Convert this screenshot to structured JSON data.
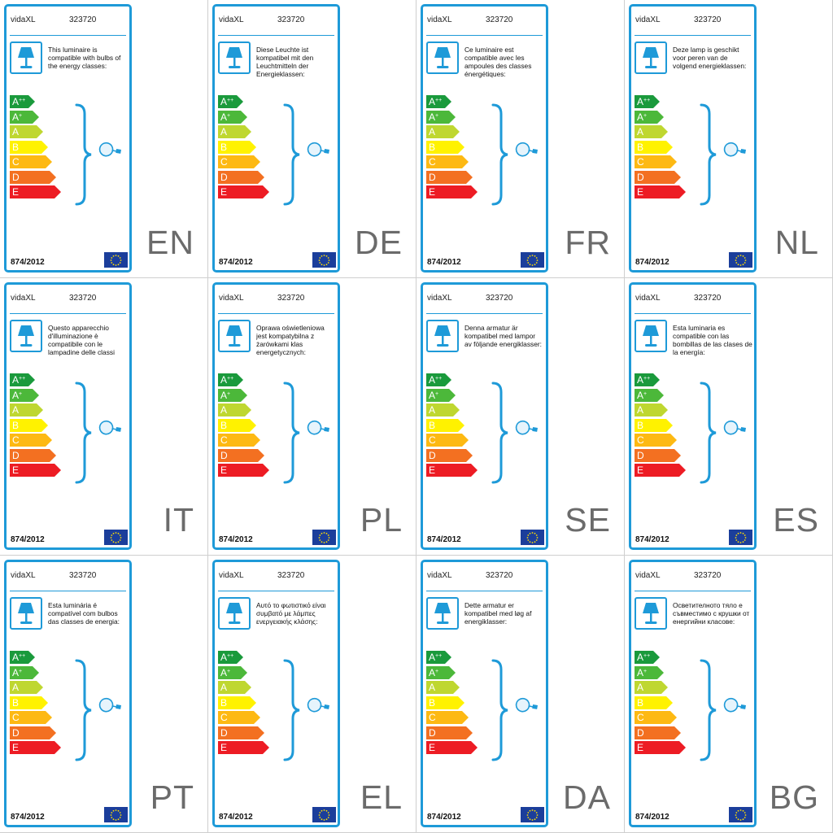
{
  "colors": {
    "accent": "#1e9ad8",
    "class_app": "#1a9a3c",
    "class_ap": "#4cb83a",
    "class_a": "#bfd730",
    "class_b": "#fff200",
    "class_c": "#fdb913",
    "class_d": "#f37021",
    "class_e": "#ed1c24"
  },
  "icons": [
    "lamp-icon",
    "brace-icon",
    "bulb-icon",
    "eu-flag-icon"
  ],
  "panels": [
    {
      "brand": "vidaXL",
      "code": "323720",
      "text": "This luminaire is compatible with bulbs of the energy classes:",
      "regulation": "874/2012",
      "lang": "EN",
      "classes": [
        {
          "letter": "A",
          "sup": "++"
        },
        {
          "letter": "A",
          "sup": "+"
        },
        {
          "letter": "A",
          "sup": ""
        },
        {
          "letter": "B",
          "sup": ""
        },
        {
          "letter": "C",
          "sup": ""
        },
        {
          "letter": "D",
          "sup": ""
        },
        {
          "letter": "E",
          "sup": ""
        }
      ]
    },
    {
      "brand": "vidaXL",
      "code": "323720",
      "text": "Diese Leuchte ist kompatibel mit den Leuchtmitteln der Energieklassen:",
      "regulation": "874/2012",
      "lang": "DE",
      "classes": [
        {
          "letter": "A",
          "sup": "++"
        },
        {
          "letter": "A",
          "sup": "+"
        },
        {
          "letter": "A",
          "sup": ""
        },
        {
          "letter": "B",
          "sup": ""
        },
        {
          "letter": "C",
          "sup": ""
        },
        {
          "letter": "D",
          "sup": ""
        },
        {
          "letter": "E",
          "sup": ""
        }
      ]
    },
    {
      "brand": "vidaXL",
      "code": "323720",
      "text": "Ce luminaire est compatible avec les ampoules des classes énergétiques:",
      "regulation": "874/2012",
      "lang": "FR",
      "classes": [
        {
          "letter": "A",
          "sup": "++"
        },
        {
          "letter": "A",
          "sup": "+"
        },
        {
          "letter": "A",
          "sup": ""
        },
        {
          "letter": "B",
          "sup": ""
        },
        {
          "letter": "C",
          "sup": ""
        },
        {
          "letter": "D",
          "sup": ""
        },
        {
          "letter": "E",
          "sup": ""
        }
      ]
    },
    {
      "brand": "vidaXL",
      "code": "323720",
      "text": "Deze lamp is geschikt voor peren van de volgend energieklassen:",
      "regulation": "874/2012",
      "lang": "NL",
      "classes": [
        {
          "letter": "A",
          "sup": "++"
        },
        {
          "letter": "A",
          "sup": "+"
        },
        {
          "letter": "A",
          "sup": ""
        },
        {
          "letter": "B",
          "sup": ""
        },
        {
          "letter": "C",
          "sup": ""
        },
        {
          "letter": "D",
          "sup": ""
        },
        {
          "letter": "E",
          "sup": ""
        }
      ]
    },
    {
      "brand": "vidaXL",
      "code": "323720",
      "text": "Questo apparecchio d'illuminazione è compatibile con le lampadine delle classi energetiche:",
      "regulation": "874/2012",
      "lang": "IT",
      "classes": [
        {
          "letter": "A",
          "sup": "++"
        },
        {
          "letter": "A",
          "sup": "+"
        },
        {
          "letter": "A",
          "sup": ""
        },
        {
          "letter": "B",
          "sup": ""
        },
        {
          "letter": "C",
          "sup": ""
        },
        {
          "letter": "D",
          "sup": ""
        },
        {
          "letter": "E",
          "sup": ""
        }
      ]
    },
    {
      "brand": "vidaXL",
      "code": "323720",
      "text": "Oprawa oświetleniowa jest kompatybilna z żarówkami klas energetycznych:",
      "regulation": "874/2012",
      "lang": "PL",
      "classes": [
        {
          "letter": "A",
          "sup": "++"
        },
        {
          "letter": "A",
          "sup": "+"
        },
        {
          "letter": "A",
          "sup": ""
        },
        {
          "letter": "B",
          "sup": ""
        },
        {
          "letter": "C",
          "sup": ""
        },
        {
          "letter": "D",
          "sup": ""
        },
        {
          "letter": "E",
          "sup": ""
        }
      ]
    },
    {
      "brand": "vidaXL",
      "code": "323720",
      "text": "Denna armatur är kompatibel med lampor av följande energiklasser:",
      "regulation": "874/2012",
      "lang": "SE",
      "classes": [
        {
          "letter": "A",
          "sup": "++"
        },
        {
          "letter": "A",
          "sup": "+"
        },
        {
          "letter": "A",
          "sup": ""
        },
        {
          "letter": "B",
          "sup": ""
        },
        {
          "letter": "C",
          "sup": ""
        },
        {
          "letter": "D",
          "sup": ""
        },
        {
          "letter": "E",
          "sup": ""
        }
      ]
    },
    {
      "brand": "vidaXL",
      "code": "323720",
      "text": "Esta luminaria es compatible con las bombillas de las clases de la energía:",
      "regulation": "874/2012",
      "lang": "ES",
      "classes": [
        {
          "letter": "A",
          "sup": "++"
        },
        {
          "letter": "A",
          "sup": "+"
        },
        {
          "letter": "A",
          "sup": ""
        },
        {
          "letter": "B",
          "sup": ""
        },
        {
          "letter": "C",
          "sup": ""
        },
        {
          "letter": "D",
          "sup": ""
        },
        {
          "letter": "E",
          "sup": ""
        }
      ]
    },
    {
      "brand": "vidaXL",
      "code": "323720",
      "text": "Esta luminária é compatível com bulbos das classes de energia:",
      "regulation": "874/2012",
      "lang": "PT",
      "classes": [
        {
          "letter": "A",
          "sup": "++"
        },
        {
          "letter": "A",
          "sup": "+"
        },
        {
          "letter": "A",
          "sup": ""
        },
        {
          "letter": "B",
          "sup": ""
        },
        {
          "letter": "C",
          "sup": ""
        },
        {
          "letter": "D",
          "sup": ""
        },
        {
          "letter": "E",
          "sup": ""
        }
      ]
    },
    {
      "brand": "vidaXL",
      "code": "323720",
      "text": "Αυτό το φωτιστικό είναι συμβατό με λάμπες ενεργειακής κλάσης:",
      "regulation": "874/2012",
      "lang": "EL",
      "classes": [
        {
          "letter": "A",
          "sup": "++"
        },
        {
          "letter": "A",
          "sup": "+"
        },
        {
          "letter": "A",
          "sup": ""
        },
        {
          "letter": "B",
          "sup": ""
        },
        {
          "letter": "C",
          "sup": ""
        },
        {
          "letter": "D",
          "sup": ""
        },
        {
          "letter": "E",
          "sup": ""
        }
      ]
    },
    {
      "brand": "vidaXL",
      "code": "323720",
      "text": "Dette armatur er kompatibel med løg af energiklasser:",
      "regulation": "874/2012",
      "lang": "DA",
      "classes": [
        {
          "letter": "A",
          "sup": "++"
        },
        {
          "letter": "A",
          "sup": "+"
        },
        {
          "letter": "A",
          "sup": ""
        },
        {
          "letter": "B",
          "sup": ""
        },
        {
          "letter": "C",
          "sup": ""
        },
        {
          "letter": "D",
          "sup": ""
        },
        {
          "letter": "E",
          "sup": ""
        }
      ]
    },
    {
      "brand": "vidaXL",
      "code": "323720",
      "text": "Осветителното тяло е съвместимо с крушки от енергийни класове:",
      "regulation": "874/2012",
      "lang": "BG",
      "classes": [
        {
          "letter": "A",
          "sup": "++"
        },
        {
          "letter": "A",
          "sup": "+"
        },
        {
          "letter": "A",
          "sup": ""
        },
        {
          "letter": "B",
          "sup": ""
        },
        {
          "letter": "C",
          "sup": ""
        },
        {
          "letter": "D",
          "sup": ""
        },
        {
          "letter": "E",
          "sup": ""
        }
      ]
    }
  ]
}
